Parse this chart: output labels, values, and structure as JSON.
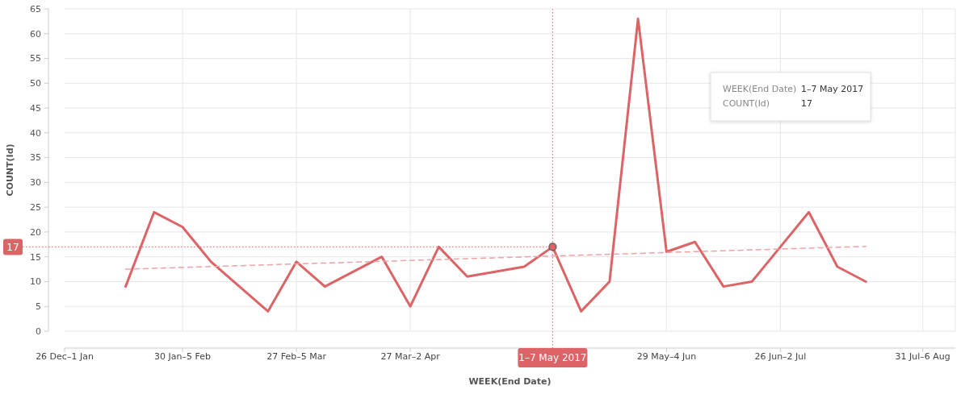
{
  "chart_data": {
    "type": "line",
    "xlabel": "WEEK(End Date)",
    "ylabel": "COUNT(Id)",
    "xlim": [
      "2017-01-01",
      "2017-08-08"
    ],
    "ylim": [
      0,
      65
    ],
    "xticks": [
      {
        "value": "2017-01-01",
        "label": "26 Dec–1 Jan"
      },
      {
        "value": "2017-01-30",
        "label": "30 Jan–5 Feb"
      },
      {
        "value": "2017-02-27",
        "label": "27 Feb–5 Mar"
      },
      {
        "value": "2017-03-27",
        "label": "27 Mar–2 Apr"
      },
      {
        "value": "2017-05-29",
        "label": "29 May–4 Jun"
      },
      {
        "value": "2017-06-26",
        "label": "26 Jun–2 Jul"
      },
      {
        "value": "2017-07-31",
        "label": "31 Jul–6 Aug"
      }
    ],
    "yticks": [
      0,
      5,
      10,
      15,
      20,
      25,
      30,
      35,
      40,
      45,
      50,
      55,
      60,
      65
    ],
    "grid": true,
    "series": [
      {
        "color": "#dc6466",
        "line_style": "solid",
        "x": [
          "2017-01-16",
          "2017-01-23",
          "2017-01-30",
          "2017-02-06",
          "2017-02-20",
          "2017-02-27",
          "2017-03-06",
          "2017-03-20",
          "2017-03-27",
          "2017-04-03",
          "2017-04-10",
          "2017-04-24",
          "2017-05-01",
          "2017-05-08",
          "2017-05-15",
          "2017-05-22",
          "2017-05-29",
          "2017-06-05",
          "2017-06-12",
          "2017-06-19",
          "2017-06-26",
          "2017-07-03",
          "2017-07-10",
          "2017-07-17"
        ],
        "values": [
          9,
          24,
          21,
          14,
          4,
          14,
          9,
          15,
          5,
          17,
          11,
          13,
          17,
          4,
          10,
          63,
          16,
          18,
          9,
          10,
          17,
          24,
          13,
          10
        ]
      },
      {
        "type": "line",
        "color": "#eea3a4",
        "line_style": "dashed",
        "x": [
          "2017-01-16",
          "2017-07-17"
        ],
        "values": [
          12.5,
          17.1
        ]
      }
    ],
    "ref_lines": [
      {
        "axis": "x",
        "value": "2017-05-01",
        "label": "1–7 May 2017",
        "color": "#dc6466",
        "line_style": "dotted"
      },
      {
        "axis": "y",
        "value": 17,
        "label": "17",
        "color": "#dc6466",
        "line_style": "dotted"
      }
    ],
    "annotations": [
      "WEEK(End Date)",
      "1–7 May 2017",
      "COUNT(Id)",
      "17"
    ]
  }
}
